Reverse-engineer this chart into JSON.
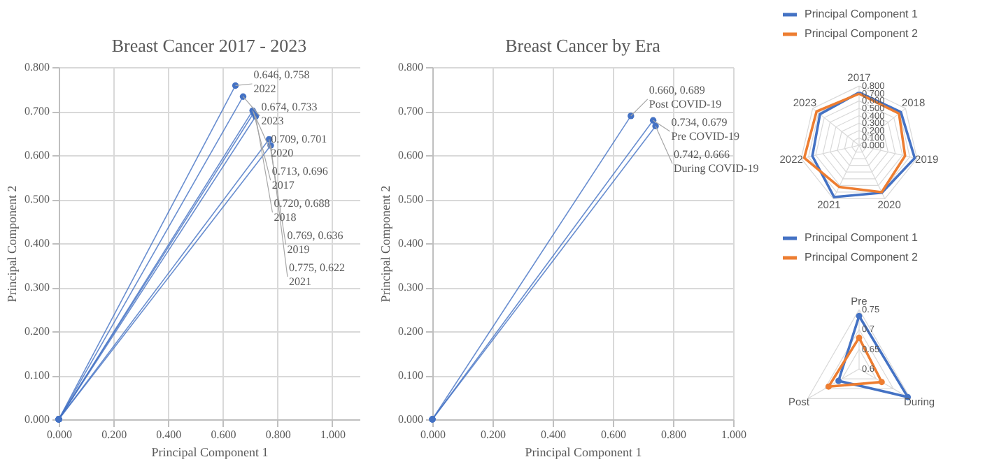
{
  "chart_data": [
    {
      "type": "line",
      "title": "Breast Cancer 2017 - 2023",
      "xlabel": "Principal Component 1",
      "ylabel": "Principal Component 2",
      "xlim": [
        0,
        1.1
      ],
      "ylim": [
        0,
        0.8
      ],
      "xticks": [
        {
          "value": 0,
          "label": "0.000"
        },
        {
          "value": 0.2,
          "label": "0.200"
        },
        {
          "value": 0.4,
          "label": "0.400"
        },
        {
          "value": 0.6,
          "label": "0.600"
        },
        {
          "value": 0.8,
          "label": "0.800"
        },
        {
          "value": 1.0,
          "label": "1.000"
        }
      ],
      "yticks": [
        {
          "value": 0,
          "label": "0.000"
        },
        {
          "value": 0.1,
          "label": "0.100"
        },
        {
          "value": 0.2,
          "label": "0.200"
        },
        {
          "value": 0.3,
          "label": "0.300"
        },
        {
          "value": 0.4,
          "label": "0.400"
        },
        {
          "value": 0.5,
          "label": "0.500"
        },
        {
          "value": 0.6,
          "label": "0.600"
        },
        {
          "value": 0.7,
          "label": "0.700"
        },
        {
          "value": 0.8,
          "label": "0.800"
        }
      ],
      "grid": true,
      "marker": "circle",
      "series": [
        {
          "name": "2017",
          "color": "#4472c4",
          "x": [
            0,
            0.713
          ],
          "values": [
            0,
            0.696
          ],
          "value_labels": [
            null,
            "0.713, 0.696"
          ]
        },
        {
          "name": "2018",
          "color": "#4472c4",
          "x": [
            0,
            0.72
          ],
          "values": [
            0,
            0.688
          ],
          "value_labels": [
            null,
            "0.720, 0.688"
          ]
        },
        {
          "name": "2019",
          "color": "#4472c4",
          "x": [
            0,
            0.769
          ],
          "values": [
            0,
            0.636
          ],
          "value_labels": [
            null,
            "0.769, 0.636"
          ]
        },
        {
          "name": "2020",
          "color": "#4472c4",
          "x": [
            0,
            0.709
          ],
          "values": [
            0,
            0.701
          ],
          "value_labels": [
            null,
            "0.709, 0.701"
          ]
        },
        {
          "name": "2021",
          "color": "#4472c4",
          "x": [
            0,
            0.775
          ],
          "values": [
            0,
            0.622
          ],
          "value_labels": [
            null,
            "0.775, 0.622"
          ]
        },
        {
          "name": "2022",
          "color": "#4472c4",
          "x": [
            0,
            0.646
          ],
          "values": [
            0,
            0.758
          ],
          "value_labels": [
            null,
            "0.646, 0.758"
          ]
        },
        {
          "name": "2023",
          "color": "#4472c4",
          "x": [
            0,
            0.674
          ],
          "values": [
            0,
            0.733
          ],
          "value_labels": [
            null,
            "0.674, 0.733"
          ]
        }
      ]
    },
    {
      "type": "line",
      "title": "Breast Cancer by Era",
      "xlabel": "Principal Component 1",
      "ylabel": "Principal Component 2",
      "xlim": [
        0,
        1.0
      ],
      "ylim": [
        0,
        0.8
      ],
      "xticks": [
        {
          "value": 0,
          "label": "0.000"
        },
        {
          "value": 0.2,
          "label": "0.200"
        },
        {
          "value": 0.4,
          "label": "0.400"
        },
        {
          "value": 0.6,
          "label": "0.600"
        },
        {
          "value": 0.8,
          "label": "0.800"
        },
        {
          "value": 1.0,
          "label": "1.000"
        }
      ],
      "yticks": [
        {
          "value": 0,
          "label": "0.000"
        },
        {
          "value": 0.1,
          "label": "0.100"
        },
        {
          "value": 0.2,
          "label": "0.200"
        },
        {
          "value": 0.3,
          "label": "0.300"
        },
        {
          "value": 0.4,
          "label": "0.400"
        },
        {
          "value": 0.5,
          "label": "0.500"
        },
        {
          "value": 0.6,
          "label": "0.600"
        },
        {
          "value": 0.7,
          "label": "0.700"
        },
        {
          "value": 0.8,
          "label": "0.800"
        }
      ],
      "grid": true,
      "marker": "circle",
      "series": [
        {
          "name": "Pre COVID-19",
          "color": "#4472c4",
          "x": [
            0,
            0.734
          ],
          "values": [
            0,
            0.679
          ],
          "value_labels": [
            null,
            "0.734, 0.679"
          ]
        },
        {
          "name": "During COVID-19",
          "color": "#4472c4",
          "x": [
            0,
            0.742
          ],
          "values": [
            0,
            0.666
          ],
          "value_labels": [
            null,
            "0.742, 0.666"
          ]
        },
        {
          "name": "Post COVID-19",
          "color": "#4472c4",
          "x": [
            0,
            0.66
          ],
          "values": [
            0,
            0.689
          ],
          "value_labels": [
            null,
            "0.660, 0.689"
          ]
        }
      ]
    },
    {
      "type": "radar",
      "categories": [
        "2017",
        "2018",
        "2019",
        "2020",
        "2021",
        "2022",
        "2023"
      ],
      "ylim": [
        0,
        0.8
      ],
      "yticks": [
        {
          "value": 0,
          "label": "0.000"
        },
        {
          "value": 0.1,
          "label": "0.100"
        },
        {
          "value": 0.2,
          "label": "0.200"
        },
        {
          "value": 0.3,
          "label": "0.300"
        },
        {
          "value": 0.4,
          "label": "0.400"
        },
        {
          "value": 0.5,
          "label": "0.500"
        },
        {
          "value": 0.6,
          "label": "0.600"
        },
        {
          "value": 0.7,
          "label": "0.700"
        },
        {
          "value": 0.8,
          "label": "0.800"
        }
      ],
      "legend": "top",
      "series": [
        {
          "name": "Principal Component 1",
          "color": "#4472c4",
          "values": [
            0.713,
            0.72,
            0.769,
            0.709,
            0.775,
            0.646,
            0.674
          ]
        },
        {
          "name": "Principal Component 2",
          "color": "#ed7d31",
          "values": [
            0.696,
            0.688,
            0.636,
            0.701,
            0.622,
            0.758,
            0.733
          ]
        }
      ]
    },
    {
      "type": "radar",
      "categories": [
        "Pre",
        "During",
        "Post"
      ],
      "ylim": [
        0.6,
        0.75
      ],
      "yticks": [
        0.6,
        0.65,
        0.7,
        0.75
      ],
      "legend": "top",
      "marker": "circle",
      "series": [
        {
          "name": "Principal Component 1",
          "color": "#4472c4",
          "values": [
            0.734,
            0.742,
            0.66
          ]
        },
        {
          "name": "Principal Component 2",
          "color": "#ed7d31",
          "values": [
            0.679,
            0.666,
            0.689
          ]
        }
      ]
    }
  ]
}
